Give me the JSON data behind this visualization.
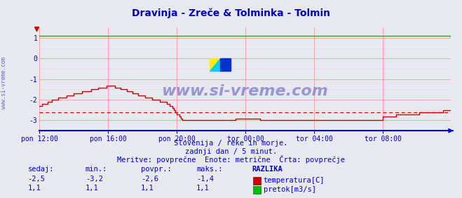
{
  "title": "Dravinja - Zreče & Tolminka - Tolmin",
  "title_color": "#0000bb",
  "bg_color": "#e8e8f0",
  "plot_bg_color": "#e8e8f0",
  "grid_color": "#ff9999",
  "axis_color": "#0000cc",
  "ylim": [
    -3.5,
    1.5
  ],
  "yticks": [
    -3,
    -2,
    -1,
    0,
    1
  ],
  "x_labels": [
    "pon 12:00",
    "pon 16:00",
    "pon 20:00",
    "tor 00:00",
    "tor 04:00",
    "tor 08:00"
  ],
  "x_label_color": "#0000cc",
  "temp_color": "#cc0000",
  "flow_color": "#00bb00",
  "avg_value": -2.6,
  "watermark": "www.si-vreme.com",
  "watermark_color": "#8888cc",
  "footer_line1": "Slovenija / reke in morje.",
  "footer_line2": "zadnji dan / 5 minut.",
  "footer_line3": "Meritve: povprečne  Enote: metrične  Črta: povprečje",
  "footer_color": "#0000cc",
  "table_header": [
    "sedaj:",
    "min.:",
    "povpr.:",
    "maks.:",
    "RAZLIKA"
  ],
  "table_temp": [
    "-2,5",
    "-3,2",
    "-2,6",
    "-1,4"
  ],
  "table_flow": [
    "1,1",
    "1,1",
    "1,1",
    "1,1"
  ],
  "legend_temp": "temperatura[C]",
  "legend_flow": "pretok[m3/s]",
  "table_color": "#0000cc",
  "sidebar_text": "www.si-vreme.com",
  "sidebar_color": "#6666bb",
  "n_points": 288
}
